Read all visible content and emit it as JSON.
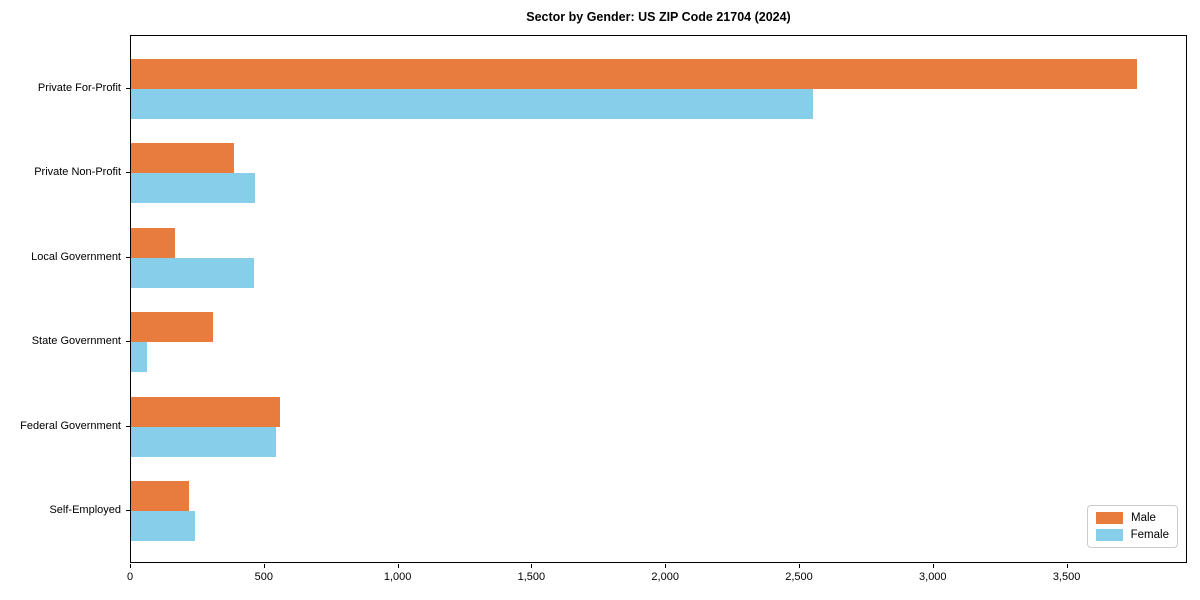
{
  "chart_data": {
    "type": "bar",
    "orientation": "horizontal",
    "title": "Sector by Gender: US ZIP Code 21704 (2024)",
    "categories": [
      "Private For-Profit",
      "Private Non-Profit",
      "Local Government",
      "State Government",
      "Federal Government",
      "Self-Employed"
    ],
    "series": [
      {
        "name": "Male",
        "color": "#e77c3e",
        "values": [
          3760,
          385,
          165,
          305,
          555,
          215
        ]
      },
      {
        "name": "Female",
        "color": "#87ceeb",
        "values": [
          2550,
          465,
          460,
          60,
          540,
          240
        ]
      }
    ],
    "xlabel": "",
    "ylabel": "",
    "xlim": [
      0,
      3950
    ],
    "x_ticks": [
      0,
      500,
      1000,
      1500,
      2000,
      2500,
      3000,
      3500
    ],
    "x_tick_labels": [
      "0",
      "500",
      "1,000",
      "1,500",
      "2,000",
      "2,500",
      "3,000",
      "3,500"
    ],
    "grid": false,
    "legend_position": "lower right",
    "legend_labels": [
      "Male",
      "Female"
    ]
  }
}
